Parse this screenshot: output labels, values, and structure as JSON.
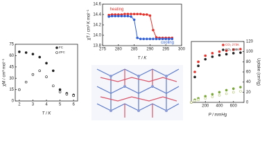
{
  "chart_data": [
    {
      "type": "line",
      "xlabel": "T / K",
      "ylabel": "χT / cm³ K mol⁻¹",
      "x": [
        277,
        278,
        279,
        280,
        281,
        282,
        283,
        284,
        285,
        286,
        287,
        288,
        289,
        290,
        291,
        292,
        293,
        294,
        295,
        296,
        297
      ],
      "series": [
        {
          "name": "heating",
          "color": "#e8312a",
          "marker": "filled",
          "values": [
            14.39,
            14.4,
            14.4,
            14.4,
            14.4,
            14.41,
            14.41,
            14.41,
            14.41,
            14.41,
            14.41,
            14.4,
            14.4,
            14.38,
            14.1,
            13.96,
            13.95,
            13.95,
            13.95,
            13.95,
            13.95
          ]
        },
        {
          "name": "cooling",
          "color": "#2f5fd8",
          "marker": "filled",
          "values": [
            14.36,
            14.37,
            14.37,
            14.37,
            14.37,
            14.37,
            14.37,
            14.36,
            14.3,
            13.95,
            13.93,
            13.93,
            13.93,
            13.93,
            13.93,
            13.93,
            13.93,
            13.93,
            13.93,
            13.93,
            13.93
          ]
        }
      ],
      "xlim": [
        275,
        300
      ],
      "xticks": [
        275,
        280,
        285,
        290,
        295,
        300
      ],
      "ylim": [
        13.8,
        14.6
      ],
      "yticks": [
        13.8,
        {
          "value": 14,
          "label": "14.0"
        },
        14.2,
        14.4,
        14.6
      ],
      "legend": "none",
      "y_axis_side": "left"
    },
    {
      "type": "scatter",
      "xlabel": "T / K",
      "ylabel": "χM / cm³ mol⁻¹",
      "x": [
        2,
        2.5,
        3,
        3.5,
        4,
        4.5,
        5,
        5.5,
        6
      ],
      "series": [
        {
          "name": "FC",
          "color": "#222222",
          "marker": "filled",
          "values": [
            65,
            64,
            62,
            58,
            50,
            40,
            15,
            10,
            8
          ]
        },
        {
          "name": "ZFC",
          "color": "#222222",
          "marker": "open",
          "values": [
            15,
            25,
            35,
            40,
            32,
            20,
            12,
            9,
            7
          ]
        }
      ],
      "xlim": [
        1.7,
        6.3
      ],
      "xticks": [
        2,
        3,
        4,
        5,
        6
      ],
      "ylim": [
        0,
        75
      ],
      "yticks": [
        0,
        15,
        30,
        45,
        60,
        75
      ],
      "legend": "upper right",
      "y_axis_side": "left"
    },
    {
      "type": "scatter",
      "xlabel": "P / mmHg",
      "ylabel": "Uptake (cm³/g)",
      "x": [
        0,
        50,
        100,
        200,
        300,
        400,
        500,
        600,
        700
      ],
      "series": [
        {
          "name": "CO₂ 273K",
          "color": "#e8312a",
          "marker": "filled",
          "values": [
            0,
            60,
            80,
            92,
            97,
            100,
            102,
            104,
            105
          ]
        },
        {
          "name": "CO₂ 298K",
          "color": "#222222",
          "marker": "filled",
          "values": [
            0,
            50,
            72,
            85,
            90,
            93,
            95,
            97,
            98
          ]
        },
        {
          "color": "#7aa83a",
          "marker": "filled",
          "values": [
            0,
            5,
            8,
            12,
            16,
            20,
            24,
            27,
            30
          ]
        },
        {
          "color": "#b5c97a",
          "marker": "open",
          "values": [
            0,
            3,
            5,
            8,
            11,
            14,
            17,
            20,
            22
          ]
        }
      ],
      "xlim": [
        0,
        750
      ],
      "xticks": [
        200,
        400,
        600
      ],
      "ylim": [
        0,
        120
      ],
      "yticks": [
        0,
        20,
        40,
        60,
        80,
        100,
        120
      ],
      "legend": "upper right",
      "y_axis_side": "right"
    }
  ]
}
